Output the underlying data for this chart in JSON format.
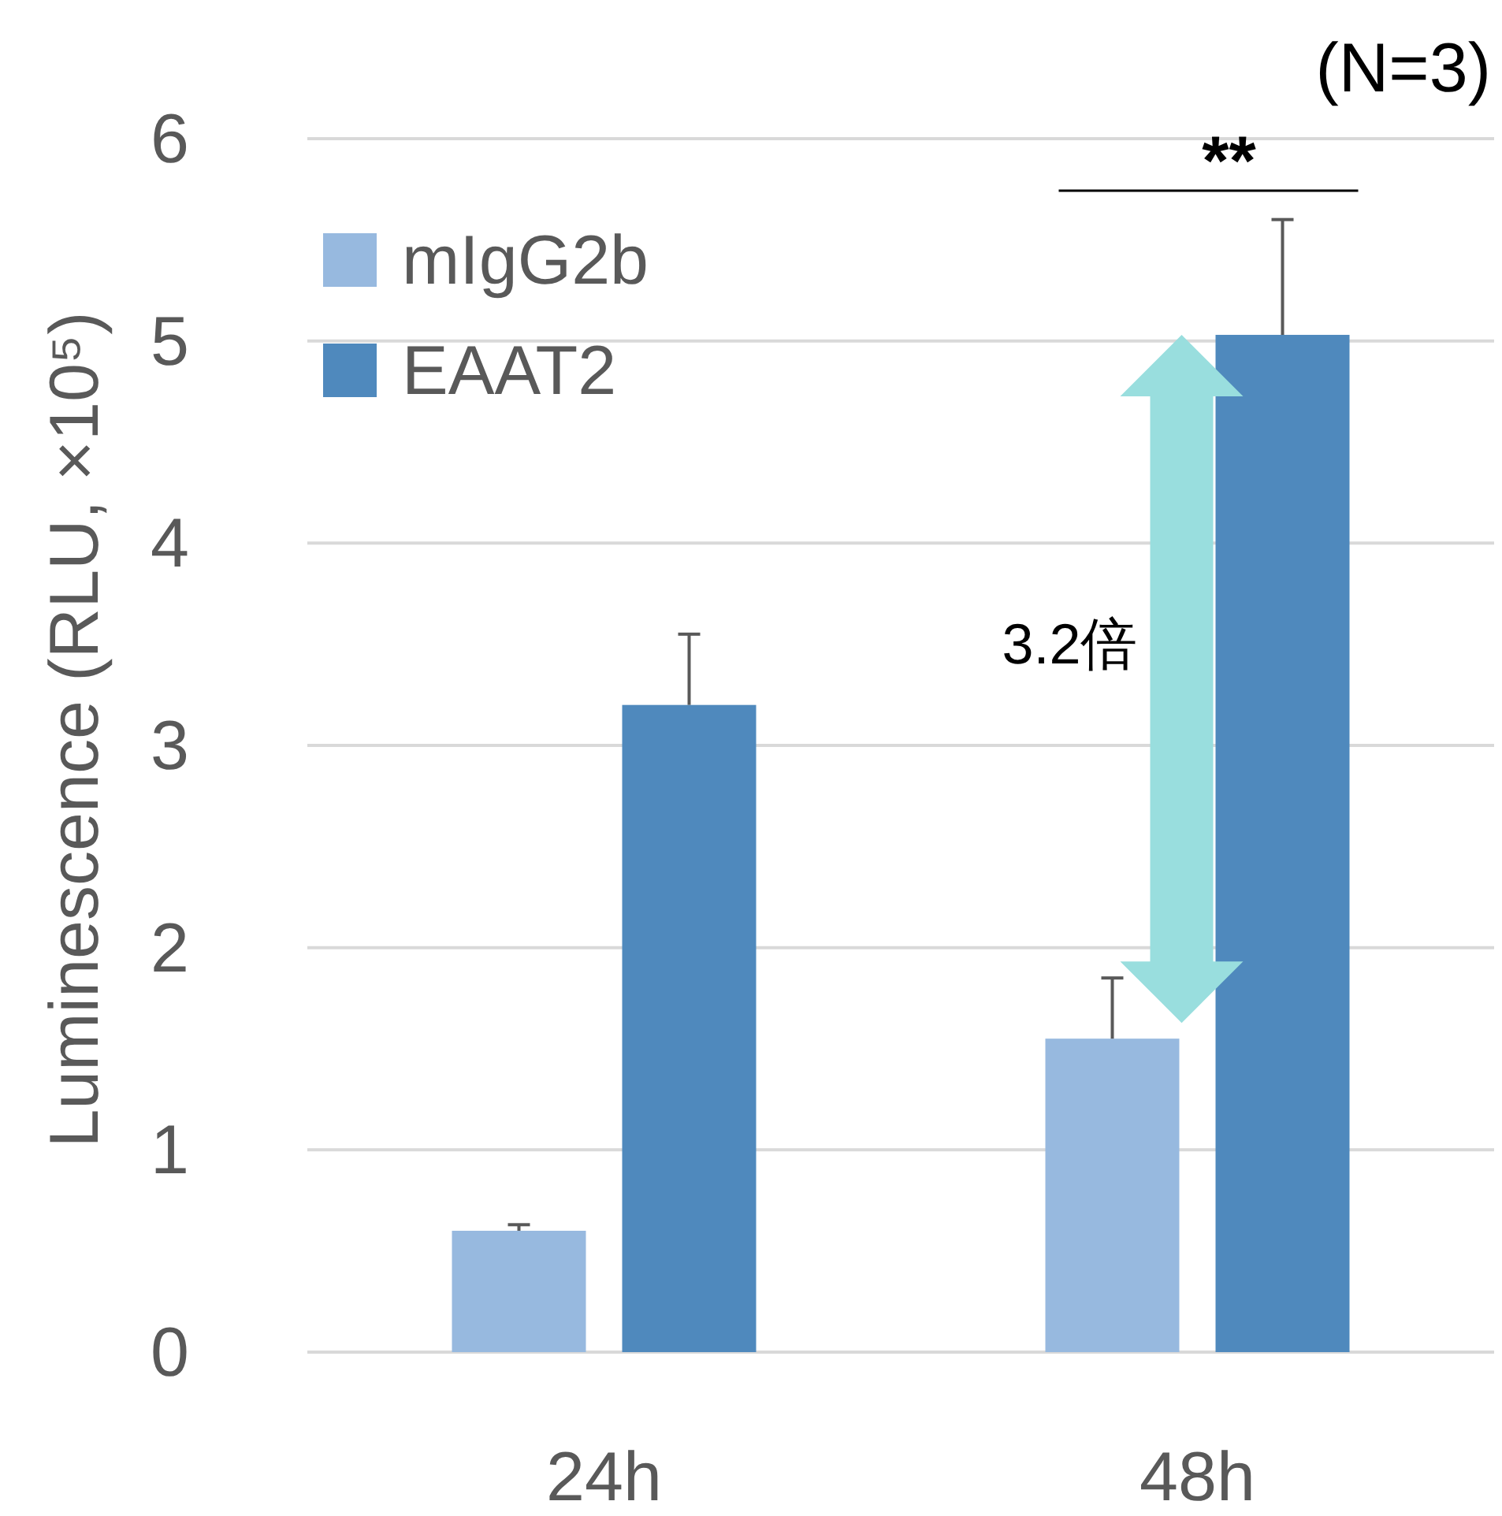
{
  "chart_data": {
    "type": "bar",
    "ylabel": "Luminescence (RLU, ×10⁵)",
    "categories": [
      "24h",
      "48h"
    ],
    "series": [
      {
        "name": "mIgG2b",
        "color": "#97b9df",
        "values": [
          0.6,
          1.55
        ],
        "errors": [
          [
            0.6,
            0.63
          ],
          [
            1.55,
            1.85
          ]
        ]
      },
      {
        "name": "EAAT2",
        "color": "#4f89bd",
        "values": [
          3.2,
          5.03
        ],
        "errors": [
          [
            3.2,
            3.55
          ],
          [
            5.03,
            5.6
          ]
        ]
      }
    ],
    "ylim": [
      0,
      6
    ],
    "yticks": [
      0,
      1,
      2,
      3,
      4,
      5,
      6
    ],
    "grid": "y",
    "legend": "top left",
    "annotations": [
      "(N=3)",
      "**",
      "3.2倍"
    ]
  }
}
